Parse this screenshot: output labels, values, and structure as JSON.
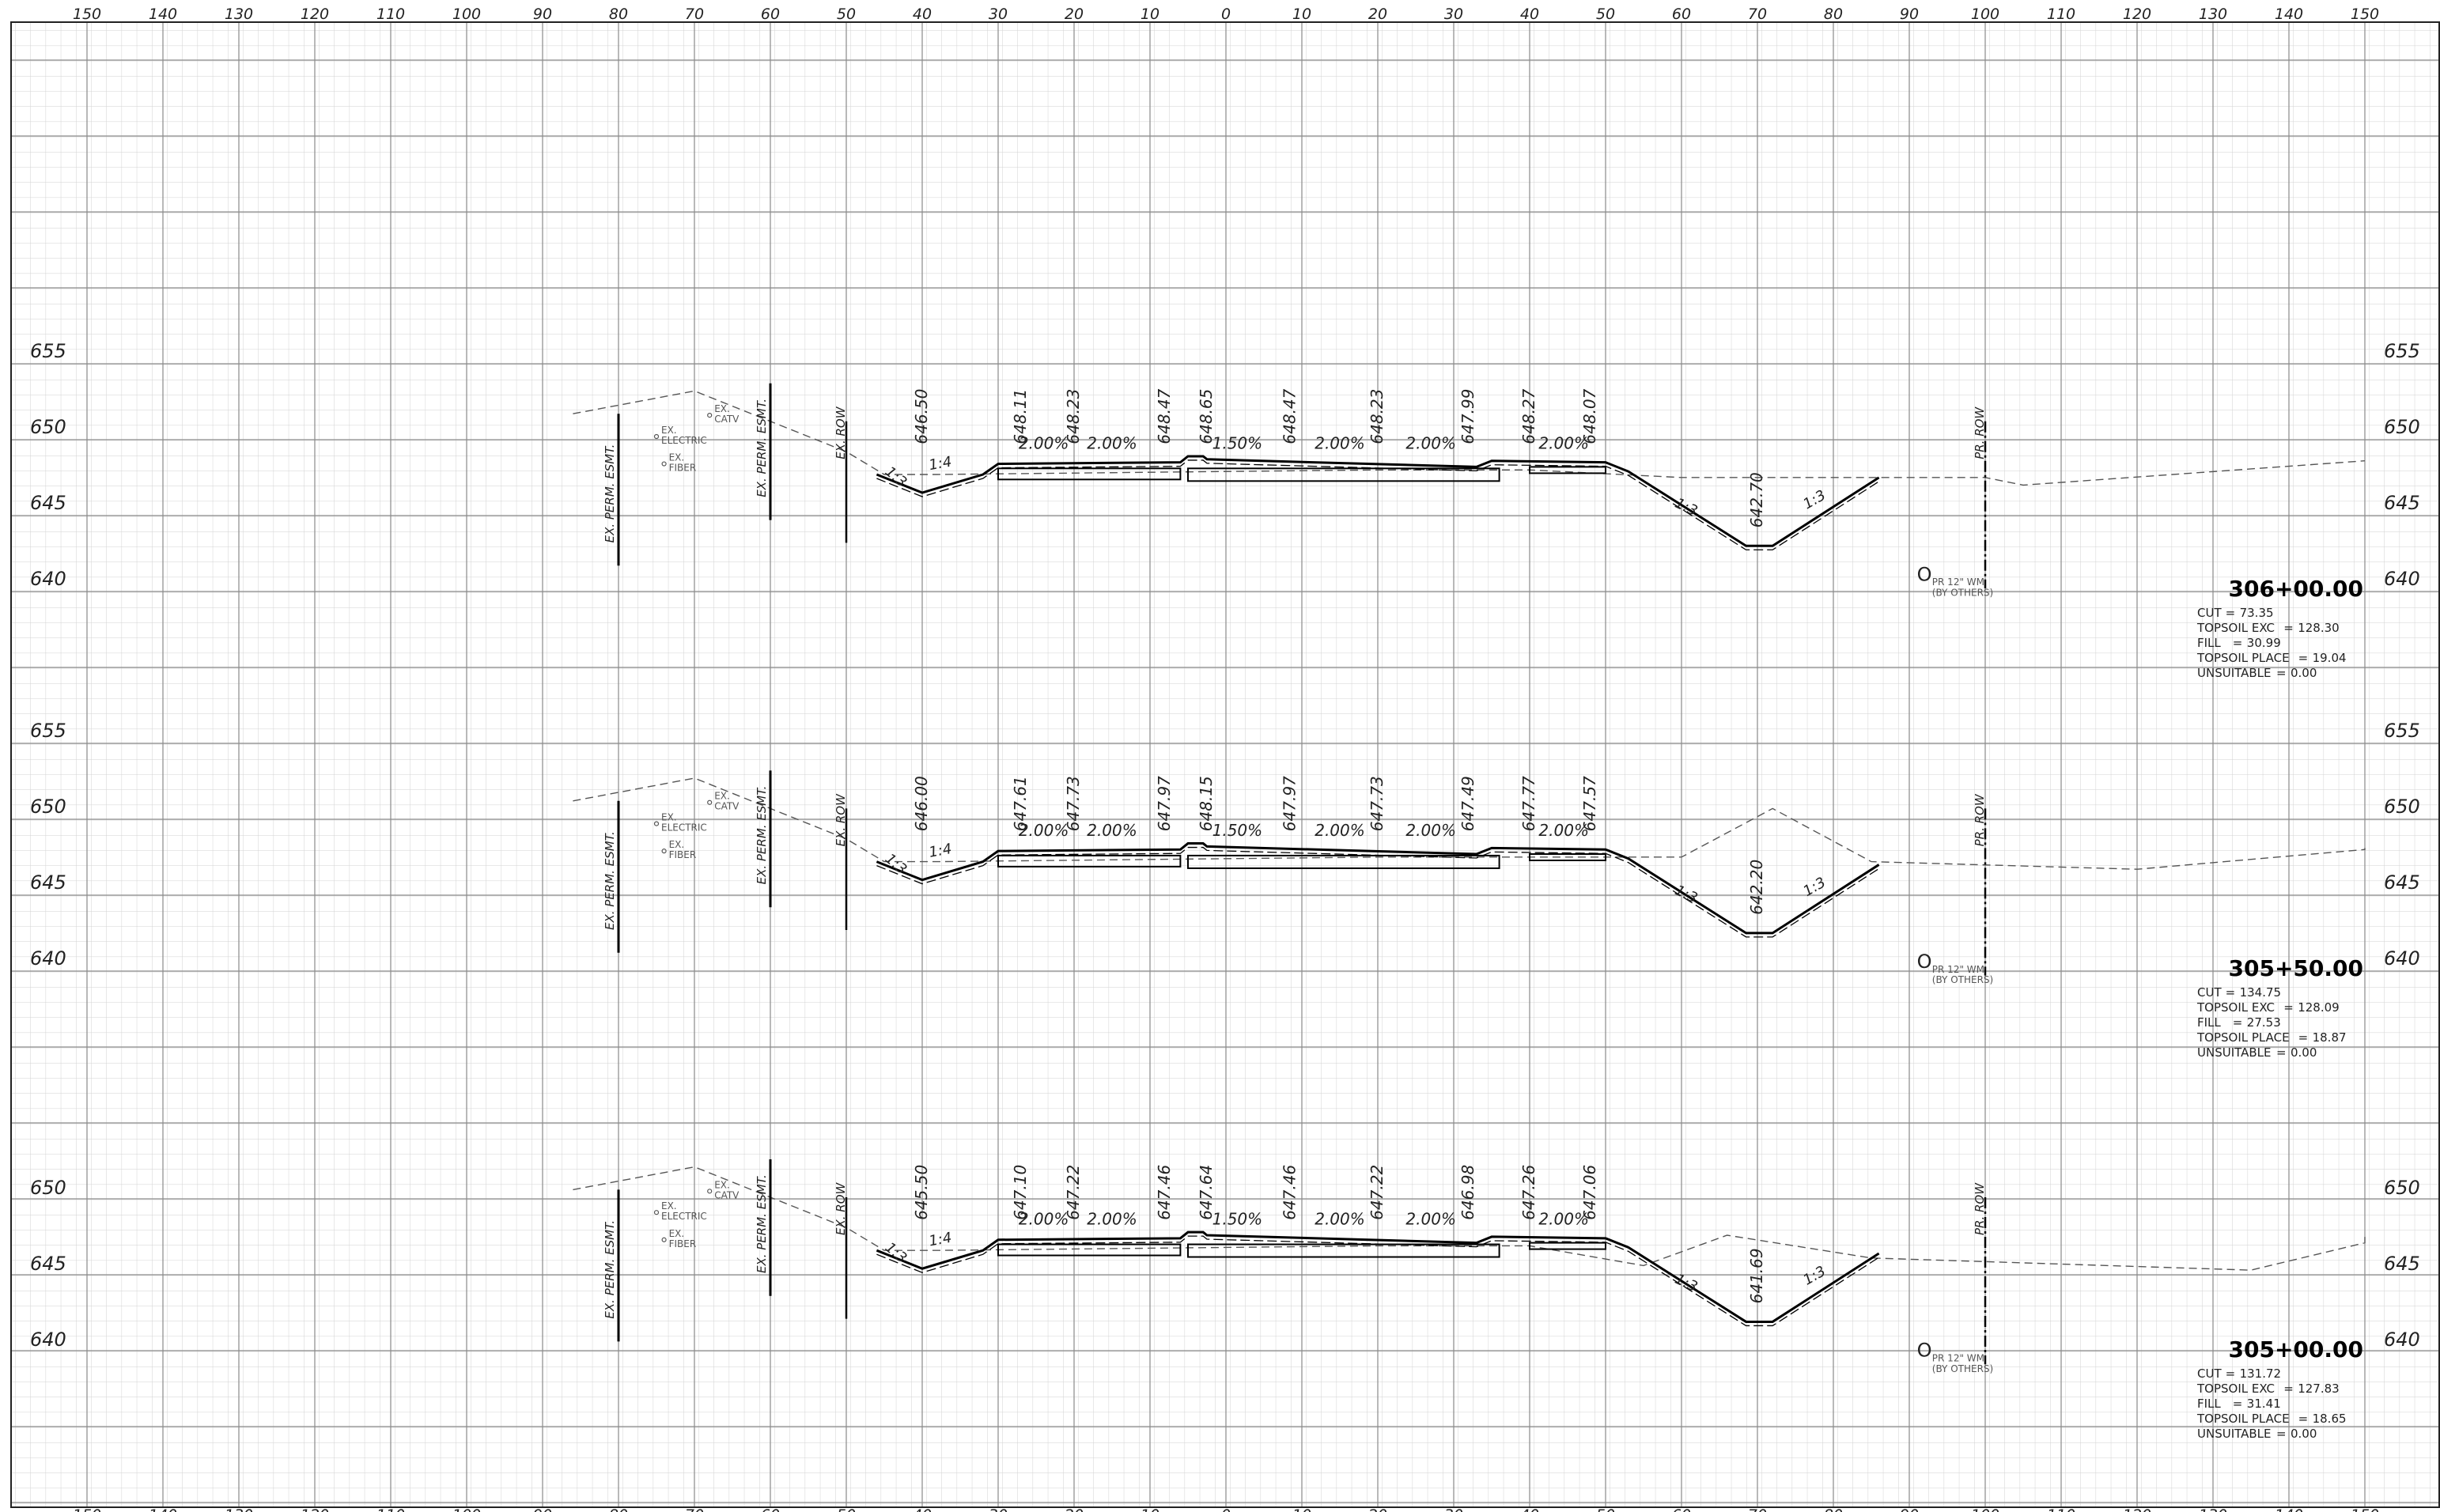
{
  "offset_scale": {
    "labels": [
      "150",
      "140",
      "130",
      "120",
      "110",
      "100",
      "90",
      "80",
      "70",
      "60",
      "50",
      "40",
      "30",
      "20",
      "10",
      "0",
      "10",
      "20",
      "30",
      "40",
      "50",
      "60",
      "70",
      "80",
      "90",
      "100",
      "110",
      "120",
      "130",
      "140",
      "150"
    ],
    "values": [
      -150,
      -140,
      -130,
      -120,
      -110,
      -100,
      -90,
      -80,
      -70,
      -60,
      -50,
      -40,
      -30,
      -20,
      -10,
      0,
      10,
      20,
      30,
      40,
      50,
      60,
      70,
      80,
      90,
      100,
      110,
      120,
      130,
      140,
      150
    ]
  },
  "common_labels": {
    "ex_perm_esmt": "EX. PERM. ESMT.",
    "ex_row": "EX. ROW",
    "pr_row": "PR. ROW",
    "ex_electric_1": "EX.",
    "ex_electric_2": "ELECTRIC",
    "ex_catv_1": "EX.",
    "ex_catv_2": "CATV",
    "ex_fiber_1": "EX.",
    "ex_fiber_2": "FIBER",
    "pr_wm_1": "PR 12\" WM",
    "pr_wm_2": "(BY OTHERS)",
    "wm_symbol": "O",
    "side_slope": "1:3",
    "front_slope": "1:4",
    "slope_1": "2.00%",
    "slope_2": "2.00%",
    "slope_3": "1.50%",
    "slope_4": "2.00%",
    "slope_5": "2.00%",
    "slope_6": "2.00%"
  },
  "cross_sections": [
    {
      "station": "306+00.00",
      "elev_labels": [
        "655",
        "650",
        "645",
        "640"
      ],
      "elev_values": [
        655,
        650,
        645,
        640
      ],
      "grade_labels": [
        "646.50",
        "648.11",
        "648.23",
        "648.47",
        "648.65",
        "648.47",
        "648.23",
        "647.99",
        "648.27",
        "648.07",
        "642.70"
      ],
      "quantities": [
        {
          "label": "CUT",
          "value": "73.35"
        },
        {
          "label": "TOPSOIL EXC",
          "value": "128.30"
        },
        {
          "label": "FILL",
          "value": "30.99"
        },
        {
          "label": "TOPSOIL PLACE",
          "value": "19.04"
        },
        {
          "label": "UNSUITABLE",
          "value": "0.00"
        }
      ]
    },
    {
      "station": "305+50.00",
      "elev_labels": [
        "655",
        "650",
        "645",
        "640"
      ],
      "elev_values": [
        655,
        650,
        645,
        640
      ],
      "grade_labels": [
        "646.00",
        "647.61",
        "647.73",
        "647.97",
        "648.15",
        "647.97",
        "647.73",
        "647.49",
        "647.77",
        "647.57",
        "642.20"
      ],
      "quantities": [
        {
          "label": "CUT",
          "value": "134.75"
        },
        {
          "label": "TOPSOIL EXC",
          "value": "128.09"
        },
        {
          "label": "FILL",
          "value": "27.53"
        },
        {
          "label": "TOPSOIL PLACE",
          "value": "18.87"
        },
        {
          "label": "UNSUITABLE",
          "value": "0.00"
        }
      ]
    },
    {
      "station": "305+00.00",
      "elev_labels": [
        "650",
        "645",
        "640"
      ],
      "elev_values": [
        650,
        645,
        640
      ],
      "grade_labels": [
        "645.50",
        "647.10",
        "647.22",
        "647.46",
        "647.64",
        "647.46",
        "647.22",
        "646.98",
        "647.26",
        "647.06",
        "641.69"
      ],
      "quantities": [
        {
          "label": "CUT",
          "value": "131.72"
        },
        {
          "label": "TOPSOIL EXC",
          "value": "127.83"
        },
        {
          "label": "FILL",
          "value": "31.41"
        },
        {
          "label": "TOPSOIL PLACE",
          "value": "18.65"
        },
        {
          "label": "UNSUITABLE",
          "value": "0.00"
        }
      ]
    }
  ],
  "colors": {
    "major_grid": "#8a8a8a",
    "minor_grid": "#d2d2d2",
    "line": "#000000",
    "existing_ground": "#555555",
    "annotation": "#222222",
    "utility_text": "#555555"
  }
}
